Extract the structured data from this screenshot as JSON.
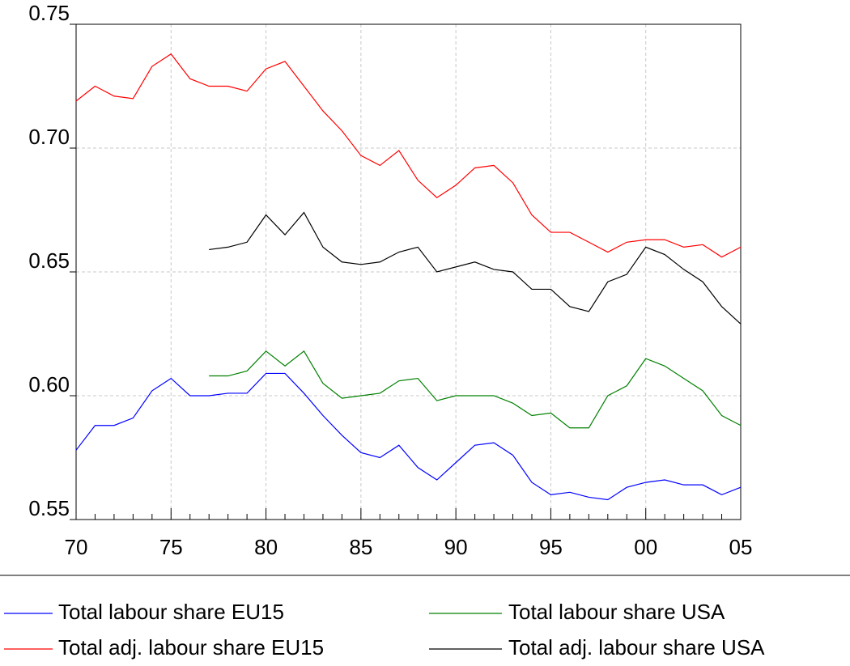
{
  "chart_data": {
    "type": "line",
    "categories": [
      "70",
      null,
      null,
      null,
      null,
      "75",
      null,
      null,
      null,
      null,
      "80",
      null,
      null,
      null,
      null,
      "85",
      null,
      null,
      null,
      null,
      "90",
      null,
      null,
      null,
      null,
      "95",
      null,
      null,
      null,
      null,
      "00",
      null,
      null,
      null,
      null,
      "05"
    ],
    "series": [
      {
        "name": "Total labour share EU15",
        "color": "#0000ff",
        "values": [
          0.578,
          0.588,
          0.588,
          0.591,
          0.602,
          0.607,
          0.6,
          0.6,
          0.601,
          0.601,
          0.609,
          0.609,
          0.601,
          0.592,
          0.584,
          0.577,
          0.575,
          0.58,
          0.571,
          0.566,
          0.573,
          0.58,
          0.581,
          0.576,
          0.565,
          0.56,
          0.561,
          0.559,
          0.558,
          0.563,
          0.565,
          0.566,
          0.564,
          0.564,
          0.56,
          0.563
        ]
      },
      {
        "name": "Total labour share USA",
        "color": "#008000",
        "values": [
          null,
          null,
          null,
          null,
          null,
          null,
          null,
          0.608,
          0.608,
          0.61,
          0.618,
          0.612,
          0.618,
          0.605,
          0.599,
          0.6,
          0.601,
          0.606,
          0.607,
          0.598,
          0.6,
          0.6,
          0.6,
          0.597,
          0.592,
          0.593,
          0.587,
          0.587,
          0.6,
          0.604,
          0.615,
          0.612,
          0.607,
          0.602,
          0.592,
          0.588
        ]
      },
      {
        "name": "Total adj. labour share EU15",
        "color": "#ff0000",
        "values": [
          0.719,
          0.725,
          0.721,
          0.72,
          0.733,
          0.738,
          0.728,
          0.725,
          0.725,
          0.723,
          0.732,
          0.735,
          0.725,
          0.715,
          0.707,
          0.697,
          0.693,
          0.699,
          0.687,
          0.68,
          0.685,
          0.692,
          0.693,
          0.686,
          0.673,
          0.666,
          0.666,
          0.662,
          0.658,
          0.662,
          0.663,
          0.663,
          0.66,
          0.661,
          0.656,
          0.66
        ]
      },
      {
        "name": "Total adj. labour share USA",
        "color": "#000000",
        "values": [
          null,
          null,
          null,
          null,
          null,
          null,
          null,
          0.659,
          0.66,
          0.662,
          0.673,
          0.665,
          0.674,
          0.66,
          0.654,
          0.653,
          0.654,
          0.658,
          0.66,
          0.65,
          0.652,
          0.654,
          0.651,
          0.65,
          0.643,
          0.643,
          0.636,
          0.634,
          0.646,
          0.649,
          0.66,
          0.657,
          0.651,
          0.646,
          0.636,
          0.629
        ]
      }
    ],
    "ylim": [
      0.55,
      0.75
    ],
    "yticks": [
      0.55,
      {
        "value": 0.6,
        "label": "0.60"
      },
      0.65,
      {
        "value": 0.7,
        "label": "0.70"
      },
      0.75
    ],
    "grid": true,
    "legend": "bottom"
  }
}
